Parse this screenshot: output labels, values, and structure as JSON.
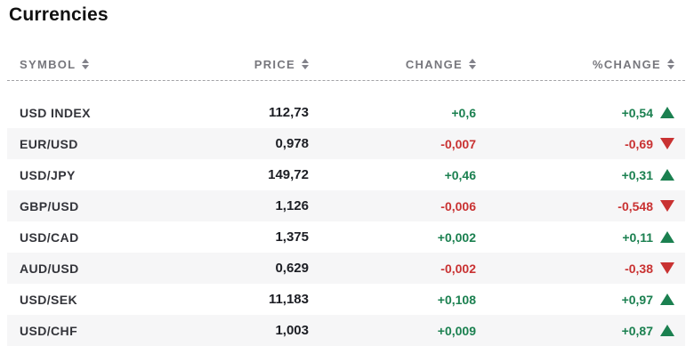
{
  "page": {
    "title": "Currencies"
  },
  "table": {
    "columns": [
      {
        "label": "SYMBOL",
        "align": "left",
        "sort_icon": "sort-arrows-icon"
      },
      {
        "label": "PRICE",
        "align": "right",
        "sort_icon": "sort-arrows-icon"
      },
      {
        "label": "CHANGE",
        "align": "right",
        "sort_icon": "sort-arrows-icon"
      },
      {
        "label": "%CHANGE",
        "align": "right",
        "sort_icon": "sort-arrows-icon"
      }
    ],
    "rows": [
      {
        "symbol": "USD INDEX",
        "price": "112,73",
        "change": "+0,6",
        "pct_change": "+0,54",
        "direction": "up"
      },
      {
        "symbol": "EUR/USD",
        "price": "0,978",
        "change": "-0,007",
        "pct_change": "-0,69",
        "direction": "down"
      },
      {
        "symbol": "USD/JPY",
        "price": "149,72",
        "change": "+0,46",
        "pct_change": "+0,31",
        "direction": "up"
      },
      {
        "symbol": "GBP/USD",
        "price": "1,126",
        "change": "-0,006",
        "pct_change": "-0,548",
        "direction": "down"
      },
      {
        "symbol": "USD/CAD",
        "price": "1,375",
        "change": "+0,002",
        "pct_change": "+0,11",
        "direction": "up"
      },
      {
        "symbol": "AUD/USD",
        "price": "0,629",
        "change": "-0,002",
        "pct_change": "-0,38",
        "direction": "down"
      },
      {
        "symbol": "USD/SEK",
        "price": "11,183",
        "change": "+0,108",
        "pct_change": "+0,97",
        "direction": "up"
      },
      {
        "symbol": "USD/CHF",
        "price": "1,003",
        "change": "+0,009",
        "pct_change": "+0,87",
        "direction": "up"
      }
    ]
  },
  "colors": {
    "positive": "#1b8050",
    "negative": "#c93232",
    "header_text": "#77777d",
    "row_stripe": "#f6f6f7",
    "title_text": "#111111",
    "price_text": "#1c1e24",
    "dashed_rule": "#a2a2a6"
  }
}
